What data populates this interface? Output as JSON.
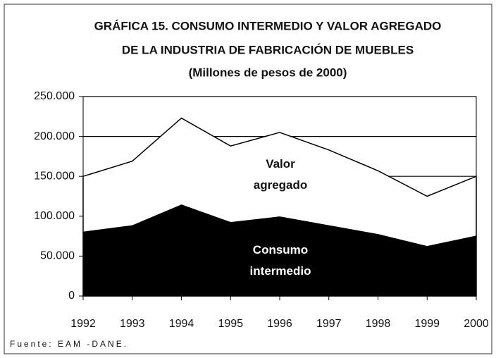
{
  "chart_data": {
    "type": "stacked_area",
    "title": "GRÁFICA 15. CONSUMO INTERMEDIO Y VALOR AGREGADO",
    "subtitle": "DE LA INDUSTRIA DE FABRICACIÓN DE MUEBLES",
    "units": "(Millones de pesos de 2000)",
    "source": "Fuente: EAM -DANE.",
    "categories": [
      "1992",
      "1993",
      "1994",
      "1995",
      "1996",
      "1997",
      "1998",
      "1999",
      "2000"
    ],
    "series": [
      {
        "name": "Consumo intermedio",
        "color": "#000000",
        "values": [
          80000,
          88000,
          114000,
          92000,
          99000,
          88000,
          77000,
          62000,
          75000
        ]
      },
      {
        "name": "Valor agregado",
        "color": "#ffffff",
        "values": [
          70000,
          81000,
          109000,
          96000,
          106000,
          95000,
          80000,
          63000,
          75000
        ]
      }
    ],
    "ylim": [
      0,
      250000
    ],
    "yticks": [
      0,
      {
        "value": 50000,
        "label": "50.000"
      },
      {
        "value": 100000,
        "label": "100.000"
      },
      {
        "value": 150000,
        "label": "150.000"
      },
      {
        "value": 200000,
        "label": "200.000"
      },
      {
        "value": 250000,
        "label": "250.000"
      }
    ],
    "grid": true
  }
}
